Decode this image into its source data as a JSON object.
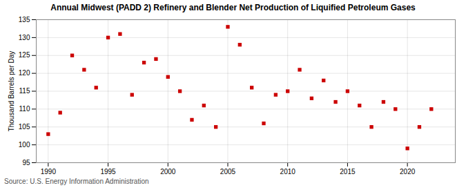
{
  "chart_data": {
    "type": "scatter",
    "title": "Annual Midwest (PADD 2) Refinery and Blender Net Production of Liquified Petroleum Gases",
    "ylabel": "Thousand Barrels per Day",
    "annotation": "Source: U.S. Energy Information Administration",
    "x": [
      1990,
      1991,
      1992,
      1993,
      1994,
      1995,
      1996,
      1997,
      1998,
      1999,
      2000,
      2001,
      2002,
      2003,
      2004,
      2005,
      2006,
      2007,
      2008,
      2009,
      2010,
      2011,
      2012,
      2013,
      2014,
      2015,
      2016,
      2017,
      2018,
      2019,
      2020,
      2021,
      2022
    ],
    "values": [
      103,
      109,
      125,
      121,
      116,
      130,
      131,
      114,
      123,
      124,
      119,
      115,
      107,
      111,
      105,
      133,
      128,
      116,
      106,
      114,
      115,
      121,
      113,
      118,
      112,
      115,
      111,
      105,
      112,
      110,
      99,
      105,
      110
    ],
    "color": "#cc0000",
    "marker": "square",
    "xlim": [
      1989,
      2024
    ],
    "ylim": [
      95,
      135
    ],
    "xticks": [
      1990,
      1995,
      2000,
      2005,
      2010,
      2015,
      2020
    ],
    "yticks": [
      95,
      100,
      105,
      110,
      115,
      120,
      125,
      130,
      135
    ],
    "grid": true
  }
}
